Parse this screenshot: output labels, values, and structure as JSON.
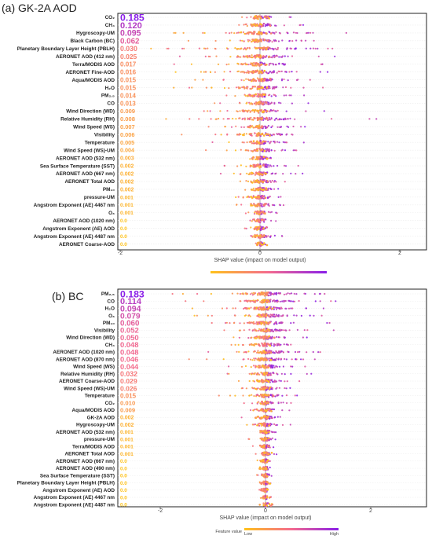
{
  "colors": {
    "low": "#ffc21a",
    "mid": "#f46a8e",
    "high": "#8a1ee8"
  },
  "colorbar": {
    "label": "Feature value",
    "low": "Low",
    "high": "High"
  },
  "chart_data": [
    {
      "type": "scatter",
      "title": "(a) GK-2A AOD",
      "xlabel": "SHAP value (impact on model output)",
      "xlim": [
        -2.6,
        2.6
      ],
      "xticks": [
        -2,
        0,
        2
      ],
      "show_colorbar_labels": false,
      "features": [
        {
          "label": "CO₂",
          "importance": "0.185",
          "spread": 0.35
        },
        {
          "label": "CH₄",
          "importance": "0.120",
          "spread": 0.35
        },
        {
          "label": "Hygroscopy-UM",
          "importance": "0.095",
          "spread": 0.75
        },
        {
          "label": "Black Carbon (BC)",
          "importance": "0.062",
          "spread": 0.6
        },
        {
          "label": "Planetary Boundary Layer Height (PBLH)",
          "importance": "0.030",
          "spread": 0.85
        },
        {
          "label": "AERONET AOD (412 nm)",
          "importance": "0.025",
          "spread": 0.8
        },
        {
          "label": "Terra/MODIS AOD",
          "importance": "0.017",
          "spread": 0.7
        },
        {
          "label": "AERONET Fine-AOD",
          "importance": "0.016",
          "spread": 0.75
        },
        {
          "label": "Aqua/MODIS AOD",
          "importance": "0.015",
          "spread": 0.6
        },
        {
          "label": "H₂O",
          "importance": "0.015",
          "spread": 0.7
        },
        {
          "label": "PM₂.₅",
          "importance": "0.014",
          "spread": 0.45
        },
        {
          "label": "CO",
          "importance": "0.013",
          "spread": 0.4
        },
        {
          "label": "Wind Direction (WD)",
          "importance": "0.009",
          "spread": 0.55
        },
        {
          "label": "Relative Humidity (RH)",
          "importance": "0.008",
          "spread": 0.9
        },
        {
          "label": "Wind Speed (WS)",
          "importance": "0.007",
          "spread": 0.45
        },
        {
          "label": "Visibility",
          "importance": "0.006",
          "spread": 0.65
        },
        {
          "label": "Temperature",
          "importance": "0.005",
          "spread": 0.5
        },
        {
          "label": "Wind Speed (WS)-UM",
          "importance": "0.004",
          "spread": 0.4
        },
        {
          "label": "AERONET AOD (532 nm)",
          "importance": "0.003",
          "spread": 0.2
        },
        {
          "label": "Sea Surface Temperature (SST)",
          "importance": "0.002",
          "spread": 0.4
        },
        {
          "label": "AERONET AOD (667 nm)",
          "importance": "0.002",
          "spread": 0.35
        },
        {
          "label": "AERONET Total AOD",
          "importance": "0.002",
          "spread": 0.25
        },
        {
          "label": "PM₁₀",
          "importance": "0.002",
          "spread": 0.25
        },
        {
          "label": "pressure-UM",
          "importance": "0.001",
          "spread": 0.3
        },
        {
          "label": "Angstrom Exponent (AE) 4467 nm",
          "importance": "0.001",
          "spread": 0.25
        },
        {
          "label": "O₃",
          "importance": "0.001",
          "spread": 0.15
        },
        {
          "label": "AERONET AOD (1020 nm)",
          "importance": "0.0",
          "spread": 0.15
        },
        {
          "label": "Angstrom Exponent (AE) AOD",
          "importance": "0.0",
          "spread": 0.15
        },
        {
          "label": "Angstrom Exponent (AE) 4487 nm",
          "importance": "0.0",
          "spread": 0.2
        },
        {
          "label": "AERONET Coarse-AOD",
          "importance": "0.0",
          "spread": 0.08
        }
      ]
    },
    {
      "type": "scatter",
      "title": "(b) BC",
      "xlabel": "SHAP value (impact on model output)",
      "xlim": [
        -2.6,
        2.6
      ],
      "xticks": [
        -2,
        0,
        2
      ],
      "show_colorbar_labels": true,
      "features": [
        {
          "label": "PM₂.₅",
          "importance": "0.183",
          "spread": 1.1
        },
        {
          "label": "CO",
          "importance": "0.114",
          "spread": 0.95
        },
        {
          "label": "H₂O",
          "importance": "0.094",
          "spread": 0.9
        },
        {
          "label": "O₃",
          "importance": "0.079",
          "spread": 0.8
        },
        {
          "label": "PM₁₀",
          "importance": "0.060",
          "spread": 0.7
        },
        {
          "label": "Visibility",
          "importance": "0.052",
          "spread": 0.7
        },
        {
          "label": "Wind Direction (WD)",
          "importance": "0.050",
          "spread": 0.55
        },
        {
          "label": "CH₄",
          "importance": "0.048",
          "spread": 0.6
        },
        {
          "label": "AERONET AOD (1020 nm)",
          "importance": "0.048",
          "spread": 0.8
        },
        {
          "label": "AERONET AOD (870 nm)",
          "importance": "0.046",
          "spread": 0.75
        },
        {
          "label": "Wind Speed (WS)",
          "importance": "0.044",
          "spread": 0.55
        },
        {
          "label": "Relative Humidity (RH)",
          "importance": "0.032",
          "spread": 0.5
        },
        {
          "label": "AERONET Coarse-AOD",
          "importance": "0.029",
          "spread": 0.45
        },
        {
          "label": "Wind Speed (WS)-UM",
          "importance": "0.026",
          "spread": 0.45
        },
        {
          "label": "Temperature",
          "importance": "0.015",
          "spread": 0.5
        },
        {
          "label": "CO₂",
          "importance": "0.010",
          "spread": 0.3
        },
        {
          "label": "Aqua/MODIS AOD",
          "importance": "0.009",
          "spread": 0.3
        },
        {
          "label": "GK-2A AOD",
          "importance": "0.002",
          "spread": 0.35
        },
        {
          "label": "Hygroscopy-UM",
          "importance": "0.002",
          "spread": 0.3
        },
        {
          "label": "AERONET AOD (532 nm)",
          "importance": "0.001",
          "spread": 0.2
        },
        {
          "label": "pressure-UM",
          "importance": "0.001",
          "spread": 0.2
        },
        {
          "label": "Terra/MODIS AOD",
          "importance": "0.001",
          "spread": 0.15
        },
        {
          "label": "AERONET Total AOD",
          "importance": "0.001",
          "spread": 0.15
        },
        {
          "label": "AERONET AOD (667 nm)",
          "importance": "0.0",
          "spread": 0.1
        },
        {
          "label": "AERONET AOD (490 nm)",
          "importance": "0.0",
          "spread": 0.1
        },
        {
          "label": "Sea Surface Temperature (SST)",
          "importance": "0.0",
          "spread": 0.1
        },
        {
          "label": "Planetary Boundary Layer Height (PBLH)",
          "importance": "0.0",
          "spread": 0.08
        },
        {
          "label": "Angstrom Exponent (AE) AOD",
          "importance": "0.0",
          "spread": 0.08
        },
        {
          "label": "Angstrom Exponent (AE) 4467 nm",
          "importance": "0.0",
          "spread": 0.06
        },
        {
          "label": "Angstrom Exponent (AE) 4487 nm",
          "importance": "0.0",
          "spread": 0.05
        }
      ]
    }
  ]
}
